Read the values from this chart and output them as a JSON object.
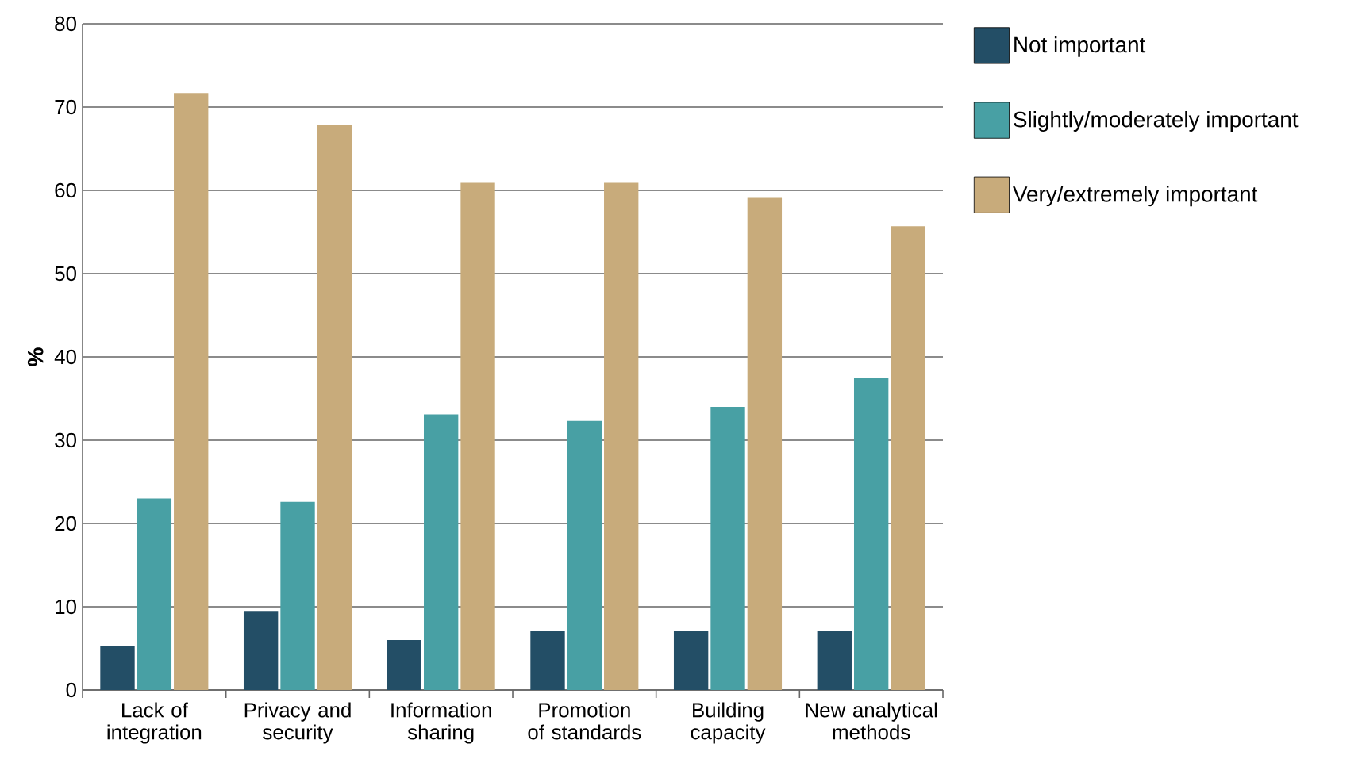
{
  "chart_data": {
    "type": "bar",
    "ylabel": "%",
    "categories": [
      "Lack of integration",
      "Privacy and security",
      "Information sharing",
      "Promotion of standards",
      "Building capacity",
      "New analytical methods"
    ],
    "series": [
      {
        "name": "Not important",
        "color": "#234e66",
        "values": [
          5.3,
          9.5,
          6.0,
          7.1,
          7.1,
          7.1
        ]
      },
      {
        "name": "Slightly/moderately important",
        "color": "#48a0a4",
        "values": [
          23.0,
          22.6,
          33.1,
          32.3,
          34.0,
          37.5
        ]
      },
      {
        "name": "Very/extremely important",
        "color": "#c8ab7b",
        "values": [
          71.7,
          67.9,
          60.9,
          60.9,
          59.1,
          55.7
        ]
      }
    ],
    "ylim": [
      0,
      80
    ],
    "yticks": [
      0,
      10,
      20,
      30,
      40,
      50,
      60,
      70,
      80
    ],
    "grid": "y",
    "legend": "top right"
  }
}
